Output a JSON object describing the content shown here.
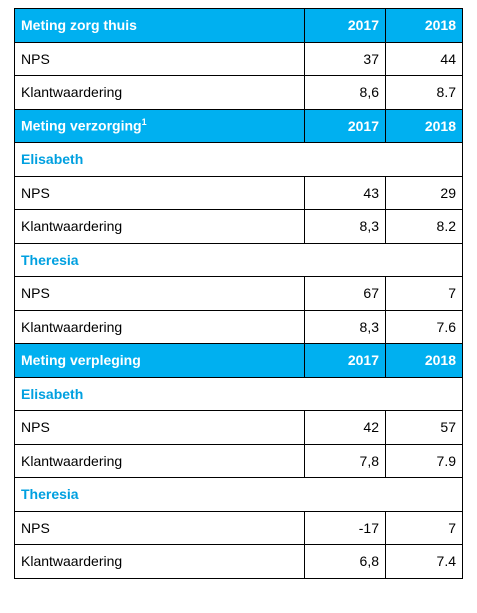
{
  "table": {
    "sections": [
      {
        "title": "Meting zorg thuis",
        "columns": [
          "2017",
          "2018"
        ],
        "rows": [
          {
            "label": "NPS",
            "values": [
              37,
              44
            ]
          },
          {
            "label": "Klantwaardering",
            "values": [
              "8,6",
              "8.7"
            ]
          }
        ]
      },
      {
        "title": "Meting verzorging",
        "footnote": "1",
        "columns": [
          "2017",
          "2018"
        ],
        "groups": [
          {
            "name": "Elisabeth",
            "rows": [
              {
                "label": "NPS",
                "values": [
                  43,
                  29
                ]
              },
              {
                "label": "Klantwaardering",
                "values": [
                  "8,3",
                  "8.2"
                ]
              }
            ]
          },
          {
            "name": "Theresia",
            "rows": [
              {
                "label": "NPS",
                "values": [
                  67,
                  7
                ]
              },
              {
                "label": "Klantwaardering",
                "values": [
                  "8,3",
                  "7.6"
                ]
              }
            ]
          }
        ]
      },
      {
        "title": "Meting verpleging",
        "columns": [
          "2017",
          "2018"
        ],
        "groups": [
          {
            "name": "Elisabeth",
            "rows": [
              {
                "label": "NPS",
                "values": [
                  42,
                  57
                ]
              },
              {
                "label": "Klantwaardering",
                "values": [
                  "7,8",
                  "7.9"
                ]
              }
            ]
          },
          {
            "name": "Theresia",
            "rows": [
              {
                "label": "NPS",
                "values": [
                  -17,
                  7
                ]
              },
              {
                "label": "Klantwaardering",
                "values": [
                  "6,8",
                  "7.4"
                ]
              }
            ]
          }
        ]
      }
    ]
  }
}
